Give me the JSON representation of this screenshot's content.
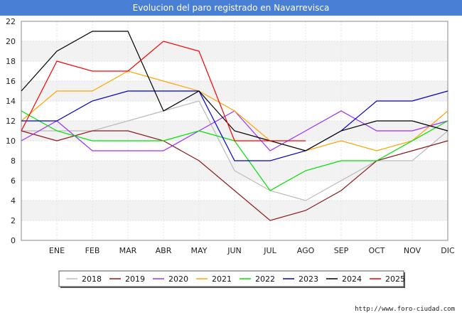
{
  "chart_data": {
    "type": "line",
    "title": "Evolucion del paro registrado en Navarrevisca",
    "categories": [
      "",
      "ENE",
      "FEB",
      "MAR",
      "ABR",
      "MAY",
      "JUN",
      "JUL",
      "AGO",
      "SEP",
      "OCT",
      "NOV",
      "DIC"
    ],
    "ylim": [
      0,
      22
    ],
    "yticks": [
      0,
      2,
      4,
      6,
      8,
      10,
      12,
      14,
      16,
      18,
      20,
      22
    ],
    "xlabel": "",
    "ylabel": "",
    "grid": true,
    "legend_position": "bottom",
    "series": [
      {
        "name": "2018",
        "color": "#bbbbbb",
        "values": [
          11,
          11,
          11,
          12,
          13,
          14,
          7,
          5,
          4,
          6,
          8,
          8,
          11
        ]
      },
      {
        "name": "2019",
        "color": "#8b1a1a",
        "values": [
          11,
          10,
          11,
          11,
          10,
          8,
          5,
          2,
          3,
          5,
          8,
          9,
          10
        ]
      },
      {
        "name": "2020",
        "color": "#9b30ff",
        "values": [
          10,
          12,
          9,
          9,
          9,
          11,
          13,
          9,
          11,
          13,
          11,
          11,
          12
        ]
      },
      {
        "name": "2021",
        "color": "#ffa500",
        "values": [
          12,
          15,
          15,
          17,
          16,
          15,
          13,
          10,
          9,
          10,
          9,
          10,
          13
        ]
      },
      {
        "name": "2022",
        "color": "#00e000",
        "values": [
          13,
          11,
          10,
          10,
          10,
          11,
          10,
          5,
          7,
          8,
          8,
          10,
          12
        ]
      },
      {
        "name": "2023",
        "color": "#0000cc",
        "values": [
          12,
          12,
          14,
          15,
          15,
          15,
          8,
          8,
          9,
          11,
          14,
          14,
          15
        ]
      },
      {
        "name": "2024",
        "color": "#000000",
        "values": [
          15,
          19,
          21,
          21,
          13,
          15,
          11,
          10,
          9,
          11,
          12,
          12,
          11
        ]
      },
      {
        "name": "2025",
        "color": "#ff0000",
        "values": [
          11,
          18,
          17,
          17,
          20,
          19,
          10,
          10,
          10,
          null,
          null,
          null,
          null
        ]
      }
    ]
  },
  "footer": {
    "url": "http://www.foro-ciudad.com"
  }
}
